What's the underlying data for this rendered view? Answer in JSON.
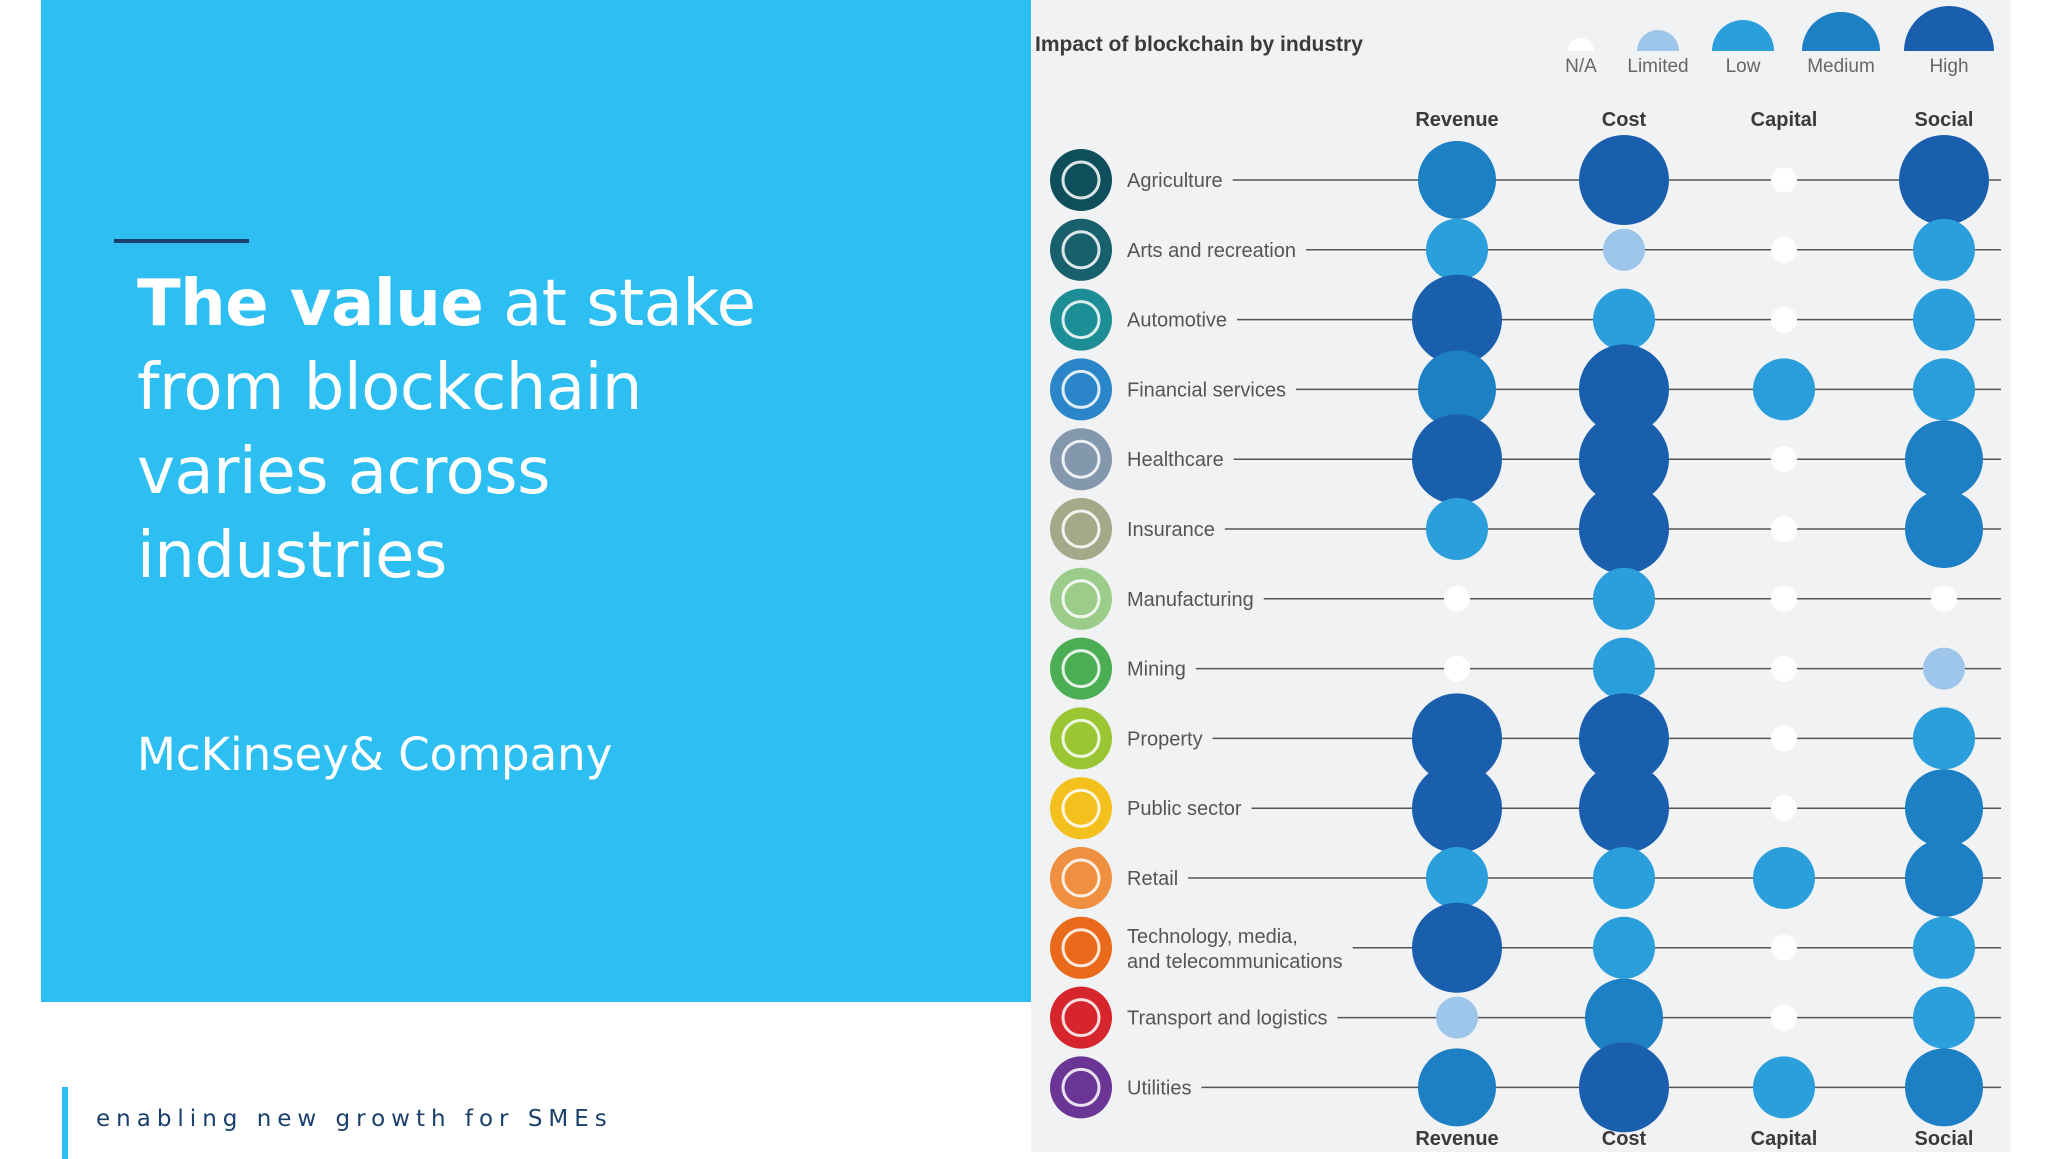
{
  "slide": {
    "title_bold": "The value",
    "title_rest_line1": " at stake",
    "title_line2": "from blockchain",
    "title_line3": "varies across",
    "title_line4": "industries",
    "company": "McKinsey& Company",
    "tagline": "enabling new growth for SMEs"
  },
  "infographic": {
    "title": "Impact of blockchain by industry",
    "legend": [
      "N/A",
      "Limited",
      "Low",
      "Medium",
      "High"
    ],
    "columns": [
      "Revenue",
      "Cost",
      "Capital",
      "Social"
    ],
    "impact_colors": {
      "N/A": "#ffffff",
      "Limited": "#9dc6ea",
      "Low": "#2b9fdc",
      "Medium": "#1d7fc4",
      "High": "#1a5fae"
    },
    "icon_colors": [
      "#0f4f5c",
      "#17606c",
      "#1e8e96",
      "#2b86c9",
      "#8397ad",
      "#a5a98a",
      "#9ccc8a",
      "#4cae54",
      "#9bc634",
      "#f4c01d",
      "#ef9040",
      "#ea6a1c",
      "#d7252e",
      "#6b3595"
    ],
    "rows": [
      {
        "industry": "Agriculture",
        "icon": "cow-icon",
        "impact": [
          "Medium",
          "High",
          "N/A",
          "High"
        ]
      },
      {
        "industry": "Arts and recreation",
        "icon": "directors-chair-icon",
        "impact": [
          "Low",
          "Limited",
          "N/A",
          "Low"
        ]
      },
      {
        "industry": "Automotive",
        "icon": "car-chassis-icon",
        "impact": [
          "High",
          "Low",
          "N/A",
          "Low"
        ]
      },
      {
        "industry": "Financial services",
        "icon": "bank-icon",
        "impact": [
          "Medium",
          "High",
          "Low",
          "Low"
        ]
      },
      {
        "industry": "Healthcare",
        "icon": "hand-medical-icon",
        "impact": [
          "High",
          "High",
          "N/A",
          "Medium"
        ]
      },
      {
        "industry": "Insurance",
        "icon": "document-icon",
        "impact": [
          "Low",
          "High",
          "N/A",
          "Medium"
        ]
      },
      {
        "industry": "Manufacturing",
        "icon": "robot-arm-icon",
        "impact": [
          "N/A",
          "Low",
          "N/A",
          "N/A"
        ]
      },
      {
        "industry": "Mining",
        "icon": "hard-hat-icon",
        "impact": [
          "N/A",
          "Low",
          "N/A",
          "Limited"
        ]
      },
      {
        "industry": "Property",
        "icon": "blueprint-icon",
        "impact": [
          "High",
          "High",
          "N/A",
          "Low"
        ]
      },
      {
        "industry": "Public sector",
        "icon": "handshake-icon",
        "impact": [
          "High",
          "High",
          "N/A",
          "Medium"
        ]
      },
      {
        "industry": "Retail",
        "icon": "shopping-cart-icon",
        "impact": [
          "Low",
          "Low",
          "Low",
          "Medium"
        ]
      },
      {
        "industry_line1": "Technology, media,",
        "industry_line2": "and telecommunications",
        "icon": "film-icon",
        "impact": [
          "High",
          "Low",
          "N/A",
          "Low"
        ]
      },
      {
        "industry": "Transport and logistics",
        "icon": "truck-icon",
        "impact": [
          "Limited",
          "Medium",
          "N/A",
          "Low"
        ]
      },
      {
        "industry": "Utilities",
        "icon": "lightning-icon",
        "impact": [
          "Medium",
          "High",
          "Low",
          "Medium"
        ]
      }
    ]
  }
}
